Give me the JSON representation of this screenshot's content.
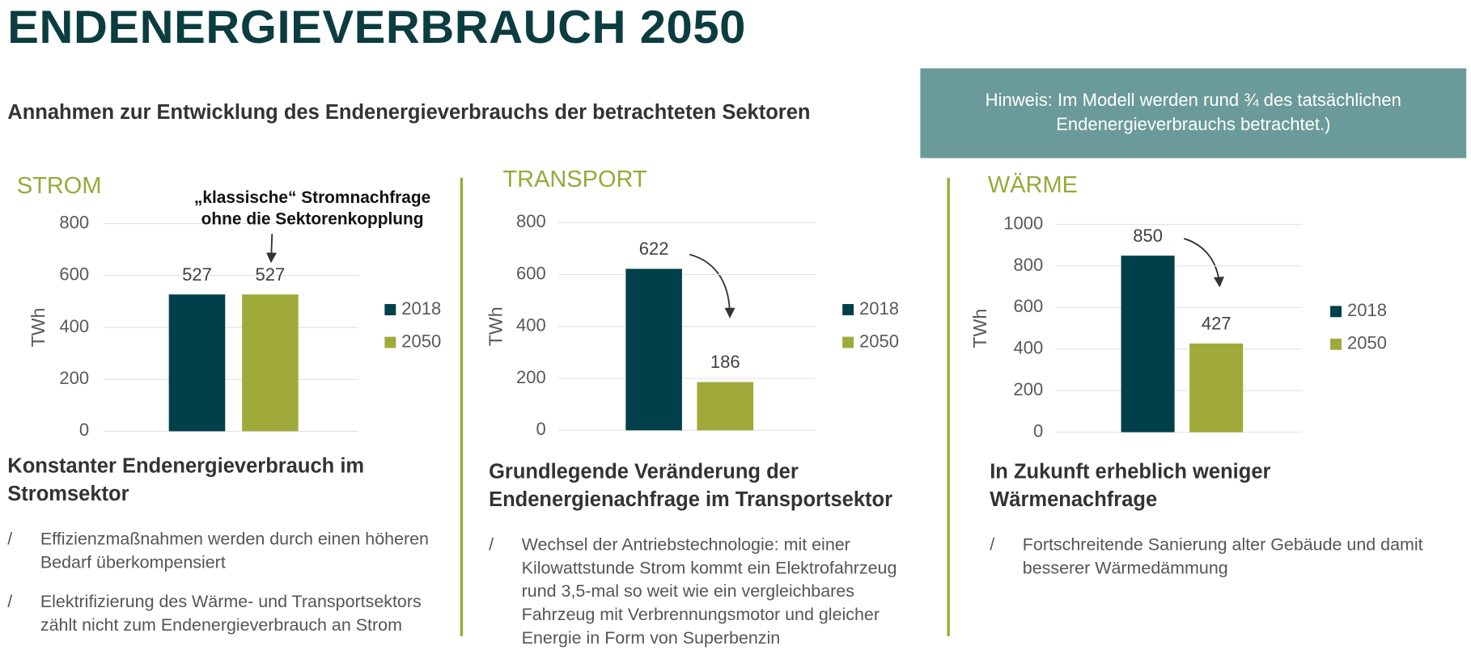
{
  "header": {
    "title": "ENDENERGIEVERBRAUCH 2050",
    "subtitle": "Annahmen zur Entwicklung des Endenergieverbrauchs der betrachteten Sektoren",
    "note": "Hinweis: Im Modell werden rund ¾ des tatsächlichen Endenergieverbrauchs betrachtet.)"
  },
  "chart_data": [
    {
      "type": "bar",
      "title": "STROM",
      "y_label": "TWh",
      "categories": [
        null
      ],
      "series": [
        {
          "name": "2018",
          "color": "#00404a",
          "values": [
            527
          ]
        },
        {
          "name": "2050",
          "color": "#a0aa3a",
          "values": [
            527
          ]
        }
      ],
      "ylim": [
        0,
        800
      ],
      "yticks": [
        0,
        200,
        400,
        600,
        800
      ],
      "grid": true,
      "annotation": "„klassische“ Stromnachfrage ohne die Sektorenkopplung"
    },
    {
      "type": "bar",
      "title": "TRANSPORT",
      "y_label": "TWh",
      "categories": [
        null
      ],
      "series": [
        {
          "name": "2018",
          "color": "#00404a",
          "values": [
            622
          ]
        },
        {
          "name": "2050",
          "color": "#a0aa3a",
          "values": [
            186
          ]
        }
      ],
      "ylim": [
        0,
        800
      ],
      "yticks": [
        0,
        200,
        400,
        600,
        800
      ],
      "grid": true
    },
    {
      "type": "bar",
      "title": "WÄRME",
      "y_label": "TWh",
      "categories": [
        null
      ],
      "series": [
        {
          "name": "2018",
          "color": "#00404a",
          "values": [
            850
          ]
        },
        {
          "name": "2050",
          "color": "#a0aa3a",
          "values": [
            427
          ]
        }
      ],
      "ylim": [
        0,
        1000
      ],
      "yticks": [
        0,
        200,
        400,
        600,
        800,
        1000
      ],
      "grid": true
    }
  ],
  "sections": [
    {
      "heading": "Konstanter Endenergieverbrauch im Stromsektor",
      "bullets": [
        "Effizienzmaßnahmen werden durch einen höheren Bedarf überkompensiert",
        "Elektrifizierung des Wärme- und Transportsektors zählt nicht zum Endenergieverbrauch an Strom"
      ]
    },
    {
      "heading": "Grundlegende Veränderung der Endenergienachfrage im Transportsektor",
      "bullets": [
        "Wechsel der Antriebstechnologie: mit einer Kilowattstunde Strom kommt ein Elektrofahrzeug rund 3,5-mal so weit wie ein vergleichbares Fahrzeug mit Verbrennungsmotor und gleicher Energie in Form von Superbenzin"
      ]
    },
    {
      "heading": "In Zukunft erheblich weniger Wärmenachfrage",
      "bullets": [
        "Fortschreitende Sanierung alter Gebäude und damit besserer Wärmedämmung"
      ]
    }
  ]
}
